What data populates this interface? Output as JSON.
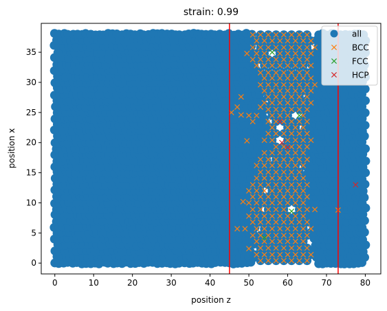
{
  "chart_data": {
    "type": "scatter",
    "title": "strain: 0.99",
    "xlabel": "position z",
    "ylabel": "position x",
    "xlim": [
      -3.5,
      84
    ],
    "ylim": [
      -1.8,
      39.8
    ],
    "xticks": [
      0,
      10,
      20,
      30,
      40,
      50,
      60,
      70,
      80
    ],
    "yticks": [
      0,
      5,
      10,
      15,
      20,
      25,
      30,
      35
    ],
    "grid": false,
    "legend_position": "top-right",
    "vlines": {
      "x": [
        45,
        73
      ],
      "color": "#ff0000"
    },
    "all": {
      "name": "all",
      "color": "#1f77b4",
      "marker": "circle",
      "grid_note_dense": true,
      "lattice": {
        "x_from": 0,
        "x_to": 80,
        "x_step": 1.15,
        "y_from": 0,
        "y_to": 38,
        "y_step": 1.0
      },
      "void_region": {
        "x": [
          50,
          68
        ],
        "y_at_top": [
          38,
          51,
          67
        ],
        "y_at_mid": [
          20,
          56,
          63
        ],
        "y_at_bottom": [
          0,
          51,
          67
        ]
      }
    },
    "series": [
      {
        "name": "BCC",
        "color": "#ff7f0e",
        "marker": "x",
        "points": [
          [
            51,
            37.9
          ],
          [
            53,
            37.9
          ],
          [
            55,
            37.9
          ],
          [
            57,
            37.9
          ],
          [
            59,
            37.9
          ],
          [
            61,
            37.9
          ],
          [
            63,
            37.9
          ],
          [
            65,
            37.9
          ],
          [
            52,
            36.9
          ],
          [
            54,
            36.9
          ],
          [
            56,
            36.9
          ],
          [
            58,
            36.9
          ],
          [
            60,
            36.9
          ],
          [
            62,
            36.9
          ],
          [
            64,
            36.9
          ],
          [
            66,
            36.9
          ],
          [
            51,
            35.8
          ],
          [
            53,
            35.8
          ],
          [
            55,
            35.8
          ],
          [
            57,
            35.8
          ],
          [
            59,
            35.8
          ],
          [
            61,
            35.8
          ],
          [
            63,
            35.8
          ],
          [
            65,
            35.8
          ],
          [
            67,
            35.8
          ],
          [
            49.5,
            34.8
          ],
          [
            52,
            34.8
          ],
          [
            54,
            34.8
          ],
          [
            58,
            34.8
          ],
          [
            60,
            34.8
          ],
          [
            62,
            34.8
          ],
          [
            64,
            34.8
          ],
          [
            66,
            34.8
          ],
          [
            51,
            33.8
          ],
          [
            53,
            33.8
          ],
          [
            55,
            33.8
          ],
          [
            57,
            33.8
          ],
          [
            59,
            33.8
          ],
          [
            61,
            33.8
          ],
          [
            63,
            33.8
          ],
          [
            65,
            33.8
          ],
          [
            52,
            32.8
          ],
          [
            54,
            32.8
          ],
          [
            56,
            32.8
          ],
          [
            58,
            32.8
          ],
          [
            60,
            32.8
          ],
          [
            62,
            32.8
          ],
          [
            64,
            32.8
          ],
          [
            66,
            32.8
          ],
          [
            53,
            31.6
          ],
          [
            55,
            31.6
          ],
          [
            57,
            31.6
          ],
          [
            59,
            31.6
          ],
          [
            61,
            31.6
          ],
          [
            63,
            31.6
          ],
          [
            65,
            31.6
          ],
          [
            54,
            30.7
          ],
          [
            56,
            30.7
          ],
          [
            58,
            30.7
          ],
          [
            60,
            30.7
          ],
          [
            62,
            30.7
          ],
          [
            64,
            30.7
          ],
          [
            66,
            30.7
          ],
          [
            53,
            29.6
          ],
          [
            55,
            29.6
          ],
          [
            57,
            29.6
          ],
          [
            59,
            29.6
          ],
          [
            61,
            29.6
          ],
          [
            63,
            29.6
          ],
          [
            65,
            29.6
          ],
          [
            67,
            29.6
          ],
          [
            54,
            28.6
          ],
          [
            56,
            28.6
          ],
          [
            58,
            28.6
          ],
          [
            60,
            28.6
          ],
          [
            62,
            28.6
          ],
          [
            64,
            28.6
          ],
          [
            66,
            28.6
          ],
          [
            55,
            27.6
          ],
          [
            57,
            27.6
          ],
          [
            59,
            27.6
          ],
          [
            61,
            27.6
          ],
          [
            63,
            27.6
          ],
          [
            65,
            27.6
          ],
          [
            48,
            27.6
          ],
          [
            54,
            26.6
          ],
          [
            56,
            26.6
          ],
          [
            58,
            26.6
          ],
          [
            60,
            26.6
          ],
          [
            62,
            26.6
          ],
          [
            64,
            26.6
          ],
          [
            66,
            26.6
          ],
          [
            47,
            25.9
          ],
          [
            53,
            25.9
          ],
          [
            55,
            25.5
          ],
          [
            57,
            25.5
          ],
          [
            59,
            25.5
          ],
          [
            61,
            25.5
          ],
          [
            63,
            25.5
          ],
          [
            65,
            25.5
          ],
          [
            45.5,
            25
          ],
          [
            48,
            24.6
          ],
          [
            50,
            24.5
          ],
          [
            52,
            24.5
          ],
          [
            56,
            24.5
          ],
          [
            58,
            24.5
          ],
          [
            60,
            24.5
          ],
          [
            64,
            24.5
          ],
          [
            51,
            23.5
          ],
          [
            55,
            23.5
          ],
          [
            57,
            23.5
          ],
          [
            59,
            23.5
          ],
          [
            61,
            23.5
          ],
          [
            63,
            23.5
          ],
          [
            65,
            23.5
          ],
          [
            56,
            22.5
          ],
          [
            60,
            22.5
          ],
          [
            62,
            22.5
          ],
          [
            64,
            22.5
          ],
          [
            55,
            21.5
          ],
          [
            57,
            21.5
          ],
          [
            59,
            21.5
          ],
          [
            61,
            21.5
          ],
          [
            63,
            21.5
          ],
          [
            65,
            21.5
          ],
          [
            54,
            20.4
          ],
          [
            56,
            20.4
          ],
          [
            60,
            20.4
          ],
          [
            62,
            20.4
          ],
          [
            64,
            20.4
          ],
          [
            66,
            20.4
          ],
          [
            49.5,
            20.3
          ],
          [
            57,
            19.3
          ],
          [
            59,
            19.3
          ],
          [
            61,
            19.3
          ],
          [
            63,
            19.3
          ],
          [
            65,
            19.3
          ],
          [
            54,
            18.3
          ],
          [
            56,
            18.3
          ],
          [
            58,
            18.3
          ],
          [
            60,
            18.3
          ],
          [
            62,
            18.3
          ],
          [
            64,
            18.3
          ],
          [
            53,
            17.2
          ],
          [
            55,
            17.2
          ],
          [
            57,
            17.2
          ],
          [
            59,
            17.2
          ],
          [
            61,
            17.2
          ],
          [
            63,
            17.2
          ],
          [
            65,
            17.2
          ],
          [
            52,
            16.2
          ],
          [
            54,
            16.2
          ],
          [
            56,
            16.2
          ],
          [
            58,
            16.2
          ],
          [
            60,
            16.2
          ],
          [
            62,
            16.2
          ],
          [
            64,
            16.2
          ],
          [
            53,
            15.1
          ],
          [
            55,
            15.1
          ],
          [
            57,
            15.1
          ],
          [
            59,
            15.1
          ],
          [
            61,
            15.1
          ],
          [
            63,
            15.1
          ],
          [
            52,
            14.1
          ],
          [
            54,
            14.1
          ],
          [
            56,
            14.1
          ],
          [
            58,
            14.1
          ],
          [
            60,
            14.1
          ],
          [
            62,
            14.1
          ],
          [
            64,
            14.1
          ],
          [
            51,
            13
          ],
          [
            53,
            13
          ],
          [
            55,
            13
          ],
          [
            57,
            13
          ],
          [
            59,
            13
          ],
          [
            61,
            13
          ],
          [
            63,
            13
          ],
          [
            65,
            13
          ],
          [
            50,
            12
          ],
          [
            52,
            12
          ],
          [
            54,
            12
          ],
          [
            56,
            12
          ],
          [
            58,
            12
          ],
          [
            60,
            12
          ],
          [
            62,
            12
          ],
          [
            64,
            12
          ],
          [
            51,
            11
          ],
          [
            53,
            11
          ],
          [
            55,
            11
          ],
          [
            57,
            11
          ],
          [
            59,
            11
          ],
          [
            61,
            11
          ],
          [
            63,
            11
          ],
          [
            65,
            11
          ],
          [
            50,
            10
          ],
          [
            52,
            10
          ],
          [
            54,
            10
          ],
          [
            56,
            10
          ],
          [
            58,
            10
          ],
          [
            60,
            10
          ],
          [
            62,
            10
          ],
          [
            64,
            10
          ],
          [
            48.5,
            10.2
          ],
          [
            51,
            8.9
          ],
          [
            53,
            8.9
          ],
          [
            55,
            8.9
          ],
          [
            57,
            8.9
          ],
          [
            59,
            8.9
          ],
          [
            63,
            8.9
          ],
          [
            65,
            8.9
          ],
          [
            67,
            8.9
          ],
          [
            73,
            8.8
          ],
          [
            50,
            7.8
          ],
          [
            52,
            7.8
          ],
          [
            54,
            7.8
          ],
          [
            56,
            7.8
          ],
          [
            58,
            7.8
          ],
          [
            60,
            7.8
          ],
          [
            62,
            7.8
          ],
          [
            64,
            7.8
          ],
          [
            47,
            5.7
          ],
          [
            49,
            5.7
          ],
          [
            51,
            6.8
          ],
          [
            53,
            6.8
          ],
          [
            55,
            6.8
          ],
          [
            57,
            6.8
          ],
          [
            59,
            6.8
          ],
          [
            61,
            6.8
          ],
          [
            63,
            6.8
          ],
          [
            65,
            6.8
          ],
          [
            52,
            5.7
          ],
          [
            54,
            5.7
          ],
          [
            56,
            5.7
          ],
          [
            58,
            5.7
          ],
          [
            60,
            5.7
          ],
          [
            62,
            5.7
          ],
          [
            64,
            5.7
          ],
          [
            66,
            5.7
          ],
          [
            51,
            4.6
          ],
          [
            53,
            4.6
          ],
          [
            55,
            4.6
          ],
          [
            57,
            4.6
          ],
          [
            59,
            4.6
          ],
          [
            61,
            4.6
          ],
          [
            63,
            4.6
          ],
          [
            65,
            4.6
          ],
          [
            52,
            3.6
          ],
          [
            54,
            3.6
          ],
          [
            56,
            3.6
          ],
          [
            58,
            3.6
          ],
          [
            60,
            3.6
          ],
          [
            62,
            3.6
          ],
          [
            64,
            3.6
          ],
          [
            50,
            2.4
          ],
          [
            53,
            2.5
          ],
          [
            55,
            2.5
          ],
          [
            57,
            2.5
          ],
          [
            59,
            2.5
          ],
          [
            61,
            2.5
          ],
          [
            63,
            2.5
          ],
          [
            65,
            2.5
          ],
          [
            52,
            1.4
          ],
          [
            54,
            1.4
          ],
          [
            56,
            1.4
          ],
          [
            58,
            1.4
          ],
          [
            60,
            1.4
          ],
          [
            62,
            1.4
          ],
          [
            64,
            1.4
          ],
          [
            66,
            1.4
          ],
          [
            53,
            0.4
          ],
          [
            55,
            0.4
          ],
          [
            57,
            0.4
          ],
          [
            59,
            0.4
          ],
          [
            61,
            0.4
          ],
          [
            63,
            0.4
          ],
          [
            65,
            0.4
          ]
        ]
      },
      {
        "name": "FCC",
        "color": "#2ca02c",
        "marker": "x",
        "points": [
          [
            56,
            35
          ],
          [
            63,
            24.5
          ],
          [
            61,
            8.6
          ],
          [
            54,
            4.2
          ]
        ]
      },
      {
        "name": "HCP",
        "color": "#d62728",
        "marker": "x",
        "points": [
          [
            58,
            23.5
          ],
          [
            58.5,
            20
          ],
          [
            60,
            19.2
          ],
          [
            77.5,
            13
          ]
        ]
      }
    ]
  }
}
